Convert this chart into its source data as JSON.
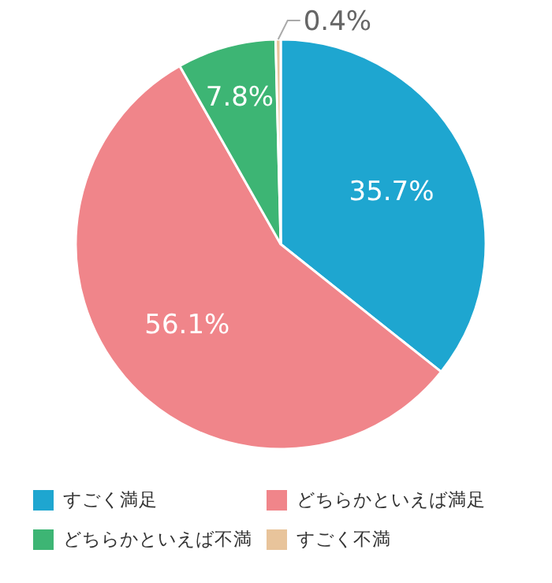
{
  "chart_data": {
    "type": "pie",
    "categories": [
      "すごく満足",
      "どちらかといえば満足",
      "どちらかといえば不満",
      "すごく不満"
    ],
    "values": [
      35.7,
      56.1,
      7.8,
      0.4
    ],
    "colors": [
      "#1ea6d0",
      "#f0858a",
      "#3db574",
      "#e8c49b"
    ],
    "value_labels": [
      "35.7%",
      "56.1%",
      "7.8%",
      "0.4%"
    ],
    "legend": "bottom"
  }
}
